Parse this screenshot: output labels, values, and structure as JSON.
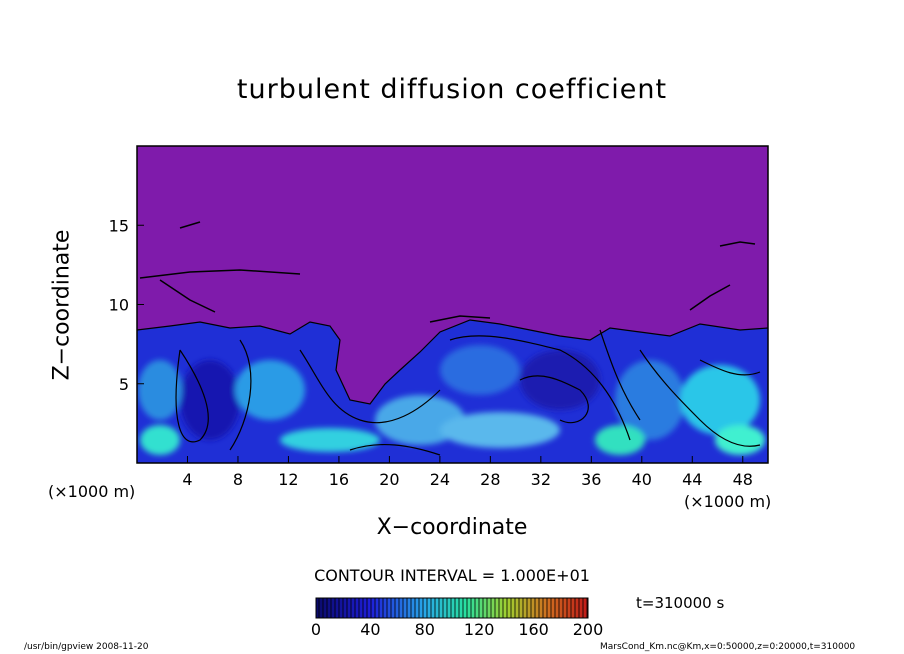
{
  "chart_data": {
    "type": "heatmap",
    "title": "turbulent diffusion coefficient",
    "xlabel": "X−coordinate",
    "ylabel": "Z−coordinate",
    "x_unit": "(×1000 m)",
    "x_ticks": [
      4,
      8,
      12,
      16,
      20,
      24,
      28,
      32,
      36,
      40,
      44,
      48
    ],
    "y_ticks": [
      5,
      10,
      15
    ],
    "xlim": [
      0,
      50
    ],
    "ylim": [
      0,
      20
    ],
    "contour_interval": "CONTOUR INTERVAL = 1.000E+01",
    "colorbar": {
      "ticks": [
        0,
        40,
        80,
        120,
        160,
        200
      ],
      "range": [
        0,
        200
      ]
    },
    "time": "t=310000 s",
    "colors": {
      "background_field": "#7f1bab",
      "low": "#1818d0",
      "mid": "#28c8e6",
      "high": "#c01818"
    }
  },
  "footer": {
    "left": "/usr/bin/gpview   2008-11-20",
    "right": "MarsCond_Km.nc@Km,x=0:50000,z=0:20000,t=310000"
  }
}
